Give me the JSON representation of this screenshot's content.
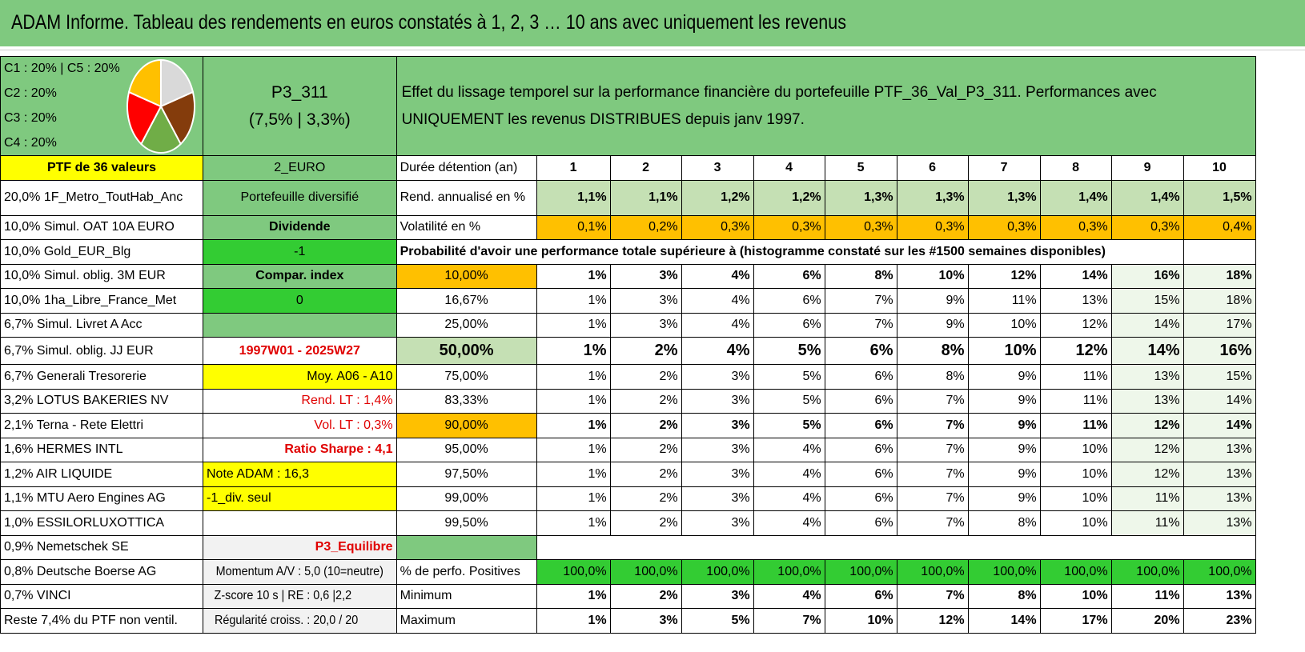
{
  "title": "ADAM Informe. Tableau des rendements en euros constatés à 1, 2, 3 … 10 ans avec uniquement les revenus",
  "allocation": {
    "lines": [
      "C1 : 20% | C5 : 20%",
      "C2 : 20%",
      "C3 : 20%",
      "C4 : 20%"
    ],
    "pie_slices": [
      {
        "label": "C1",
        "value": 20,
        "color": "#d9d9d9"
      },
      {
        "label": "C5",
        "value": 20,
        "color": "#843c0c"
      },
      {
        "label": "C4",
        "value": 20,
        "color": "#70ad47"
      },
      {
        "label": "C3",
        "value": 20,
        "color": "#ff0000"
      },
      {
        "label": "C2",
        "value": 20,
        "color": "#ffc000"
      }
    ]
  },
  "portfolio": {
    "name": "P3_311",
    "params": "(7,5% | 3,3%)"
  },
  "description": "Effet du lissage temporel sur la performance financière du portefeuille PTF_36_Val_P3_311. Performances avec UNIQUEMENT les revenus DISTRIBUES depuis janv 1997.",
  "ptf_label": "PTF de 36 valeurs",
  "currency": "2_EURO",
  "duration_label": "Durée détention (an)",
  "years": [
    "1",
    "2",
    "3",
    "4",
    "5",
    "6",
    "7",
    "8",
    "9",
    "10"
  ],
  "holdings": [
    "20,0% 1F_Metro_ToutHab_Anc",
    "10,0% Simul. OAT 10A EURO",
    "10,0% Gold_EUR_Blg",
    "10,0% Simul. oblig. 3M EUR",
    "10,0% 1ha_Libre_France_Met",
    "6,7% Simul. Livret A Acc",
    "6,7% Simul. oblig. JJ EUR",
    "6,7% Generali Tresorerie",
    "3,2% LOTUS BAKERIES NV",
    "2,1% Terna - Rete Elettri",
    "1,6% HERMES INTL",
    "1,2% AIR LIQUIDE",
    "1,1% MTU Aero Engines AG",
    "1,0% ESSILORLUXOTTICA",
    "0,9% Nemetschek SE",
    "0,8% Deutsche Boerse AG",
    "0,7% VINCI",
    "Reste 7,4% du PTF non ventil."
  ],
  "info": {
    "type": "Portefeuille diversifié",
    "dividend": "Dividende",
    "minus_one": "-1",
    "compar": "Compar. index",
    "zero": "0",
    "period": "1997W01 - 2025W27",
    "moy": "Moy. A06 - A10",
    "rend_lt": "Rend. LT : 1,4%",
    "vol_lt": "Vol. LT : 0,3%",
    "sharpe": "Ratio Sharpe : 4,1",
    "note": "Note ADAM : 16,3",
    "div_only": "-1_div. seul",
    "profile": "P3_Equilibre",
    "momentum": "Momentum A/V : 5,0 (10=neutre)",
    "zscore": "Z-score 10 s | RE : 0,6 |2,2",
    "regularite": "Régularité croiss. : 20,0 / 20"
  },
  "rend": {
    "label": "Rend. annualisé en %",
    "values": [
      "1,1%",
      "1,1%",
      "1,2%",
      "1,2%",
      "1,3%",
      "1,3%",
      "1,3%",
      "1,4%",
      "1,4%",
      "1,5%"
    ]
  },
  "vol": {
    "label": "Volatilité en %",
    "values": [
      "0,1%",
      "0,2%",
      "0,3%",
      "0,3%",
      "0,3%",
      "0,3%",
      "0,3%",
      "0,3%",
      "0,3%",
      "0,4%"
    ]
  },
  "prob_label": "Probabilité d'avoir une performance totale supérieure à (histogramme constaté sur les #1500 semaines disponibles)",
  "prob_rows": [
    {
      "p": "10,00%",
      "values": [
        "1%",
        "3%",
        "4%",
        "6%",
        "8%",
        "10%",
        "12%",
        "14%",
        "16%",
        "18%"
      ]
    },
    {
      "p": "16,67%",
      "values": [
        "1%",
        "3%",
        "4%",
        "6%",
        "7%",
        "9%",
        "11%",
        "13%",
        "15%",
        "18%"
      ]
    },
    {
      "p": "25,00%",
      "values": [
        "1%",
        "3%",
        "4%",
        "6%",
        "7%",
        "9%",
        "10%",
        "12%",
        "14%",
        "17%"
      ]
    },
    {
      "p": "50,00%",
      "values": [
        "1%",
        "2%",
        "4%",
        "5%",
        "6%",
        "8%",
        "10%",
        "12%",
        "14%",
        "16%"
      ]
    },
    {
      "p": "75,00%",
      "values": [
        "1%",
        "2%",
        "3%",
        "5%",
        "6%",
        "8%",
        "9%",
        "11%",
        "13%",
        "15%"
      ]
    },
    {
      "p": "83,33%",
      "values": [
        "1%",
        "2%",
        "3%",
        "5%",
        "6%",
        "7%",
        "9%",
        "11%",
        "13%",
        "14%"
      ]
    },
    {
      "p": "90,00%",
      "values": [
        "1%",
        "2%",
        "3%",
        "5%",
        "6%",
        "7%",
        "9%",
        "11%",
        "12%",
        "14%"
      ]
    },
    {
      "p": "95,00%",
      "values": [
        "1%",
        "2%",
        "3%",
        "4%",
        "6%",
        "7%",
        "9%",
        "10%",
        "12%",
        "13%"
      ]
    },
    {
      "p": "97,50%",
      "values": [
        "1%",
        "2%",
        "3%",
        "4%",
        "6%",
        "7%",
        "9%",
        "10%",
        "12%",
        "13%"
      ]
    },
    {
      "p": "99,00%",
      "values": [
        "1%",
        "2%",
        "3%",
        "4%",
        "6%",
        "7%",
        "9%",
        "10%",
        "11%",
        "13%"
      ]
    },
    {
      "p": "99,50%",
      "values": [
        "1%",
        "2%",
        "3%",
        "4%",
        "6%",
        "7%",
        "8%",
        "10%",
        "11%",
        "13%"
      ]
    }
  ],
  "positives": {
    "label": "% de perfo. Positives",
    "values": [
      "100,0%",
      "100,0%",
      "100,0%",
      "100,0%",
      "100,0%",
      "100,0%",
      "100,0%",
      "100,0%",
      "100,0%",
      "100,0%"
    ]
  },
  "minimum": {
    "label": "Minimum",
    "values": [
      "1%",
      "2%",
      "3%",
      "4%",
      "6%",
      "7%",
      "8%",
      "10%",
      "11%",
      "13%"
    ]
  },
  "maximum": {
    "label": "Maximum",
    "values": [
      "1%",
      "3%",
      "5%",
      "7%",
      "10%",
      "12%",
      "14%",
      "17%",
      "20%",
      "23%"
    ]
  }
}
